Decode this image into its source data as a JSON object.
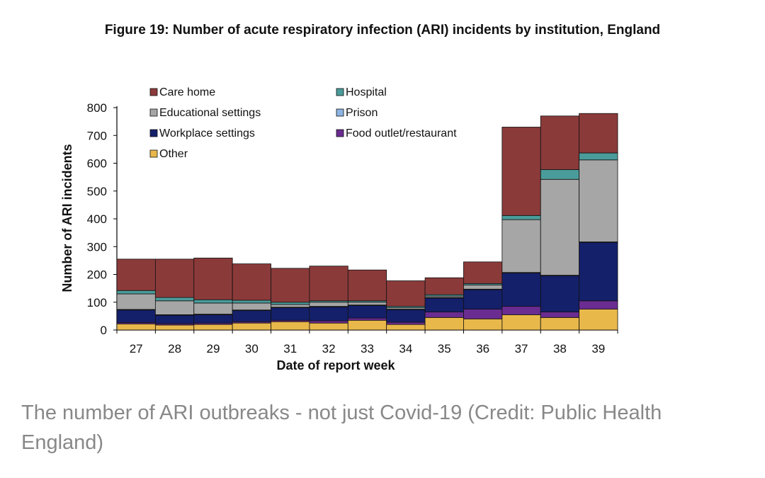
{
  "chart_data": {
    "type": "bar",
    "stacked": true,
    "title": "Figure 19: Number of acute respiratory infection (ARI) incidents by institution, England",
    "xlabel": "Date of report week",
    "ylabel": "Number of ARI incidents",
    "ylim": [
      0,
      800
    ],
    "yticks": [
      0,
      100,
      200,
      300,
      400,
      500,
      600,
      700,
      800
    ],
    "grid": false,
    "legend_position": "top-left (inside plot)",
    "categories": [
      "27",
      "28",
      "29",
      "30",
      "31",
      "32",
      "33",
      "34",
      "35",
      "36",
      "37",
      "38",
      "39"
    ],
    "series": [
      {
        "name": "Other",
        "color": "#e8b84b",
        "values": [
          22,
          18,
          20,
          25,
          30,
          25,
          35,
          20,
          45,
          40,
          55,
          45,
          75
        ]
      },
      {
        "name": "Food outlet/restaurant",
        "color": "#6a2c91",
        "values": [
          5,
          5,
          5,
          5,
          5,
          8,
          8,
          8,
          20,
          35,
          30,
          20,
          30
        ]
      },
      {
        "name": "Workplace settings",
        "color": "#14206a",
        "values": [
          45,
          30,
          30,
          40,
          45,
          50,
          45,
          45,
          50,
          70,
          120,
          130,
          210
        ]
      },
      {
        "name": "Prison",
        "color": "#8db4e2",
        "values": [
          2,
          2,
          2,
          2,
          2,
          2,
          2,
          2,
          2,
          2,
          2,
          2,
          2
        ]
      },
      {
        "name": "Educational settings",
        "color": "#a6a6a6",
        "values": [
          56,
          50,
          40,
          25,
          10,
          15,
          10,
          5,
          5,
          15,
          190,
          345,
          295
        ]
      },
      {
        "name": "Hospital",
        "color": "#4a9c9a",
        "values": [
          12,
          12,
          12,
          10,
          8,
          5,
          5,
          5,
          5,
          5,
          15,
          35,
          25
        ]
      },
      {
        "name": "Care home",
        "color": "#8b3a3a",
        "values": [
          113,
          138,
          150,
          131,
          122,
          125,
          111,
          92,
          61,
          78,
          318,
          193,
          142
        ]
      }
    ],
    "legend_order": [
      "Care home",
      "Hospital",
      "Educational settings",
      "Prison",
      "Workplace settings",
      "Food outlet/restaurant",
      "Other"
    ]
  },
  "caption": "The number of ARI outbreaks - not just Covid-19 (Credit: Public Health England)"
}
